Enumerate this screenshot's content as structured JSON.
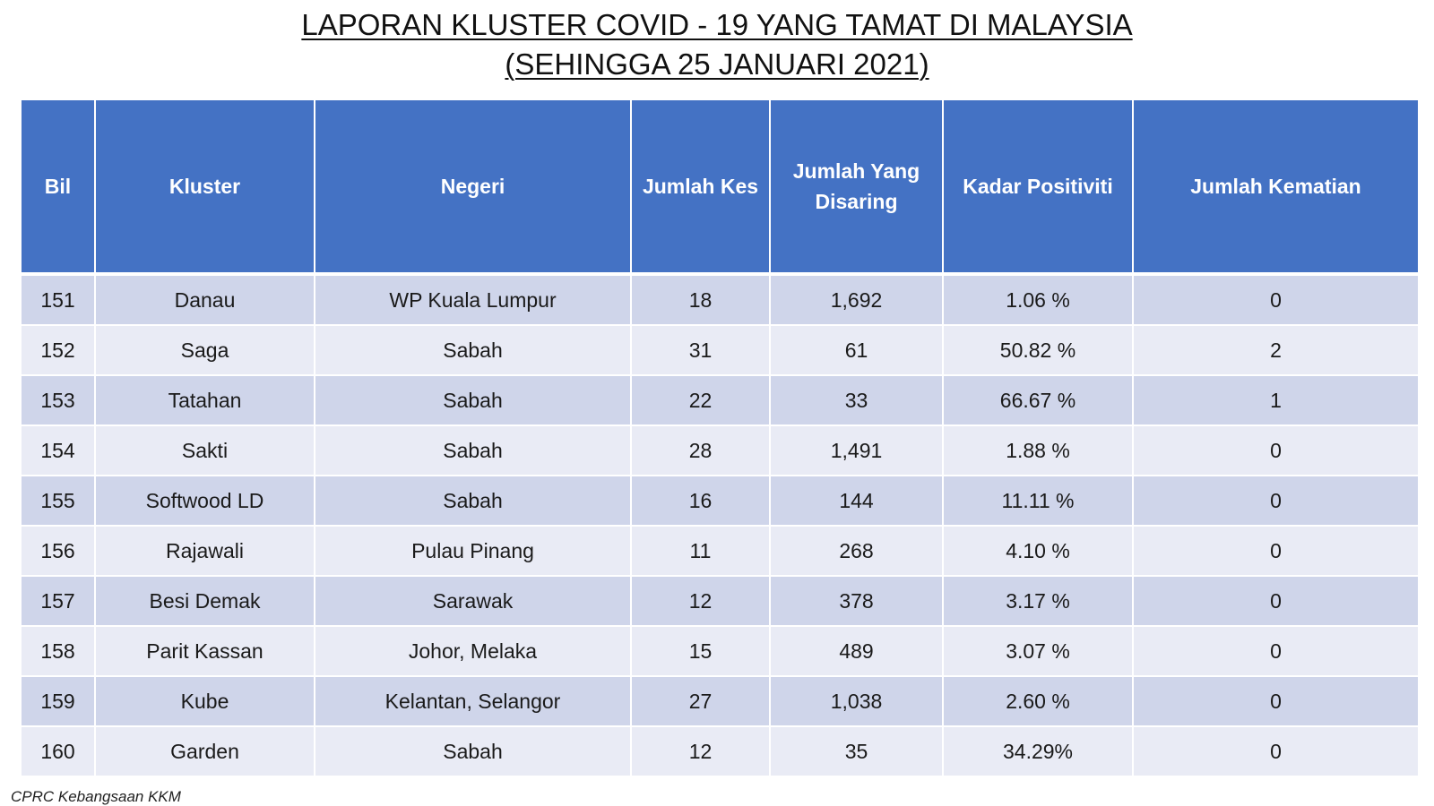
{
  "title": {
    "line1": "LAPORAN KLUSTER COVID - 19 YANG TAMAT DI MALAYSIA",
    "line2": "(SEHINGGA 25 JANUARI 2021)"
  },
  "table": {
    "headers": [
      "Bil",
      "Kluster",
      "Negeri",
      "Jumlah Kes",
      "Jumlah Yang Disaring",
      "Kadar Positiviti",
      "Jumlah Kematian"
    ],
    "rows": [
      [
        "151",
        "Danau",
        "WP Kuala Lumpur",
        "18",
        "1,692",
        "1.06 %",
        "0"
      ],
      [
        "152",
        "Saga",
        "Sabah",
        "31",
        "61",
        "50.82 %",
        "2"
      ],
      [
        "153",
        "Tatahan",
        "Sabah",
        "22",
        "33",
        "66.67 %",
        "1"
      ],
      [
        "154",
        "Sakti",
        "Sabah",
        "28",
        "1,491",
        "1.88 %",
        "0"
      ],
      [
        "155",
        "Softwood LD",
        "Sabah",
        "16",
        "144",
        "11.11 %",
        "0"
      ],
      [
        "156",
        "Rajawali",
        "Pulau Pinang",
        "11",
        "268",
        "4.10 %",
        "0"
      ],
      [
        "157",
        "Besi Demak",
        "Sarawak",
        "12",
        "378",
        "3.17 %",
        "0"
      ],
      [
        "158",
        "Parit Kassan",
        "Johor, Melaka",
        "15",
        "489",
        "3.07 %",
        "0"
      ],
      [
        "159",
        "Kube",
        "Kelantan, Selangor",
        "27",
        "1,038",
        "2.60 %",
        "0"
      ],
      [
        "160",
        "Garden",
        "Sabah",
        "12",
        "35",
        "34.29%",
        "0"
      ]
    ]
  },
  "footer": {
    "source": "CPRC Kebangsaan KKM"
  },
  "colors": {
    "header_bg": "#4472c4",
    "row_odd_bg": "#cfd5ea",
    "row_even_bg": "#e9ebf5",
    "header_text": "#ffffff"
  }
}
